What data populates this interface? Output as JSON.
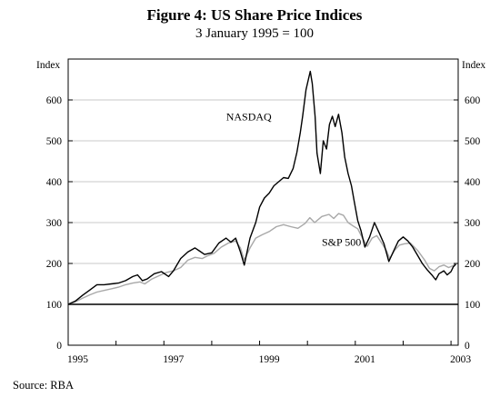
{
  "chart_data": {
    "type": "line",
    "title": "Figure 4: US Share Price Indices",
    "subtitle": "3 January 1995 = 100",
    "ylabel_left": "Index",
    "ylabel_right": "Index",
    "ylim": [
      0,
      700
    ],
    "y_ticks": [
      "0",
      "100",
      "200",
      "300",
      "400",
      "500",
      "600"
    ],
    "xlim": [
      1995.0,
      2003.15
    ],
    "x_ticks": [
      "1995",
      "1997",
      "1999",
      "2001",
      "2003"
    ],
    "x_tick_positions": [
      1995.2,
      1997.2,
      1999.2,
      2001.2,
      2003.2
    ],
    "grid": true,
    "baseline": 100,
    "source": "Source: RBA",
    "series": [
      {
        "name": "NASDAQ",
        "color": "#000000",
        "points": [
          [
            1995.0,
            100
          ],
          [
            1995.15,
            108
          ],
          [
            1995.3,
            122
          ],
          [
            1995.45,
            135
          ],
          [
            1995.6,
            148
          ],
          [
            1995.75,
            148
          ],
          [
            1995.9,
            150
          ],
          [
            1996.05,
            152
          ],
          [
            1996.2,
            158
          ],
          [
            1996.35,
            168
          ],
          [
            1996.45,
            172
          ],
          [
            1996.55,
            158
          ],
          [
            1996.65,
            162
          ],
          [
            1996.8,
            175
          ],
          [
            1996.95,
            180
          ],
          [
            1997.1,
            168
          ],
          [
            1997.2,
            182
          ],
          [
            1997.35,
            212
          ],
          [
            1997.5,
            228
          ],
          [
            1997.65,
            238
          ],
          [
            1997.75,
            230
          ],
          [
            1997.85,
            222
          ],
          [
            1998.0,
            226
          ],
          [
            1998.15,
            250
          ],
          [
            1998.3,
            262
          ],
          [
            1998.4,
            252
          ],
          [
            1998.5,
            262
          ],
          [
            1998.6,
            228
          ],
          [
            1998.68,
            196
          ],
          [
            1998.8,
            262
          ],
          [
            1998.92,
            300
          ],
          [
            1999.0,
            338
          ],
          [
            1999.1,
            360
          ],
          [
            1999.2,
            372
          ],
          [
            1999.3,
            390
          ],
          [
            1999.4,
            400
          ],
          [
            1999.5,
            410
          ],
          [
            1999.6,
            408
          ],
          [
            1999.7,
            432
          ],
          [
            1999.78,
            472
          ],
          [
            1999.85,
            520
          ],
          [
            1999.9,
            560
          ],
          [
            1999.97,
            625
          ],
          [
            2000.02,
            650
          ],
          [
            2000.06,
            670
          ],
          [
            2000.1,
            640
          ],
          [
            2000.16,
            560
          ],
          [
            2000.2,
            470
          ],
          [
            2000.27,
            420
          ],
          [
            2000.33,
            500
          ],
          [
            2000.4,
            480
          ],
          [
            2000.46,
            540
          ],
          [
            2000.52,
            560
          ],
          [
            2000.58,
            535
          ],
          [
            2000.65,
            565
          ],
          [
            2000.72,
            520
          ],
          [
            2000.78,
            460
          ],
          [
            2000.85,
            420
          ],
          [
            2000.92,
            390
          ],
          [
            2000.98,
            350
          ],
          [
            2001.05,
            305
          ],
          [
            2001.12,
            280
          ],
          [
            2001.2,
            240
          ],
          [
            2001.3,
            265
          ],
          [
            2001.4,
            300
          ],
          [
            2001.5,
            275
          ],
          [
            2001.6,
            248
          ],
          [
            2001.7,
            205
          ],
          [
            2001.8,
            230
          ],
          [
            2001.9,
            255
          ],
          [
            2002.0,
            265
          ],
          [
            2002.1,
            255
          ],
          [
            2002.2,
            240
          ],
          [
            2002.3,
            220
          ],
          [
            2002.4,
            200
          ],
          [
            2002.5,
            185
          ],
          [
            2002.6,
            172
          ],
          [
            2002.68,
            160
          ],
          [
            2002.75,
            175
          ],
          [
            2002.85,
            182
          ],
          [
            2002.92,
            172
          ],
          [
            2003.0,
            180
          ],
          [
            2003.05,
            192
          ],
          [
            2003.1,
            198
          ]
        ]
      },
      {
        "name": "S&P 500",
        "color": "#a8a8a8",
        "points": [
          [
            1995.0,
            100
          ],
          [
            1995.15,
            106
          ],
          [
            1995.3,
            115
          ],
          [
            1995.45,
            123
          ],
          [
            1995.6,
            130
          ],
          [
            1995.75,
            134
          ],
          [
            1995.9,
            138
          ],
          [
            1996.05,
            142
          ],
          [
            1996.2,
            148
          ],
          [
            1996.35,
            152
          ],
          [
            1996.5,
            155
          ],
          [
            1996.6,
            150
          ],
          [
            1996.75,
            162
          ],
          [
            1996.9,
            170
          ],
          [
            1997.05,
            178
          ],
          [
            1997.2,
            182
          ],
          [
            1997.35,
            190
          ],
          [
            1997.5,
            208
          ],
          [
            1997.65,
            215
          ],
          [
            1997.8,
            212
          ],
          [
            1997.9,
            218
          ],
          [
            1998.05,
            225
          ],
          [
            1998.2,
            240
          ],
          [
            1998.35,
            250
          ],
          [
            1998.5,
            255
          ],
          [
            1998.6,
            238
          ],
          [
            1998.68,
            208
          ],
          [
            1998.8,
            238
          ],
          [
            1998.92,
            262
          ],
          [
            1999.05,
            270
          ],
          [
            1999.2,
            278
          ],
          [
            1999.35,
            290
          ],
          [
            1999.5,
            295
          ],
          [
            1999.65,
            290
          ],
          [
            1999.8,
            286
          ],
          [
            1999.95,
            298
          ],
          [
            2000.05,
            312
          ],
          [
            2000.15,
            300
          ],
          [
            2000.3,
            315
          ],
          [
            2000.45,
            320
          ],
          [
            2000.55,
            310
          ],
          [
            2000.65,
            322
          ],
          [
            2000.75,
            318
          ],
          [
            2000.85,
            300
          ],
          [
            2000.95,
            292
          ],
          [
            2001.05,
            285
          ],
          [
            2001.15,
            262
          ],
          [
            2001.25,
            242
          ],
          [
            2001.35,
            262
          ],
          [
            2001.45,
            268
          ],
          [
            2001.55,
            250
          ],
          [
            2001.65,
            232
          ],
          [
            2001.72,
            212
          ],
          [
            2001.82,
            232
          ],
          [
            2001.92,
            245
          ],
          [
            2002.02,
            248
          ],
          [
            2002.15,
            250
          ],
          [
            2002.3,
            232
          ],
          [
            2002.45,
            208
          ],
          [
            2002.55,
            188
          ],
          [
            2002.65,
            182
          ],
          [
            2002.75,
            192
          ],
          [
            2002.85,
            196
          ],
          [
            2002.95,
            190
          ],
          [
            2003.05,
            195
          ],
          [
            2003.1,
            200
          ]
        ]
      }
    ],
    "annotations": [
      {
        "text": "NASDAQ",
        "series": "NASDAQ",
        "x": 1998.3,
        "y": 550
      },
      {
        "text": "S&P 500",
        "series": "S&P 500",
        "x": 2000.3,
        "y": 243
      }
    ]
  }
}
